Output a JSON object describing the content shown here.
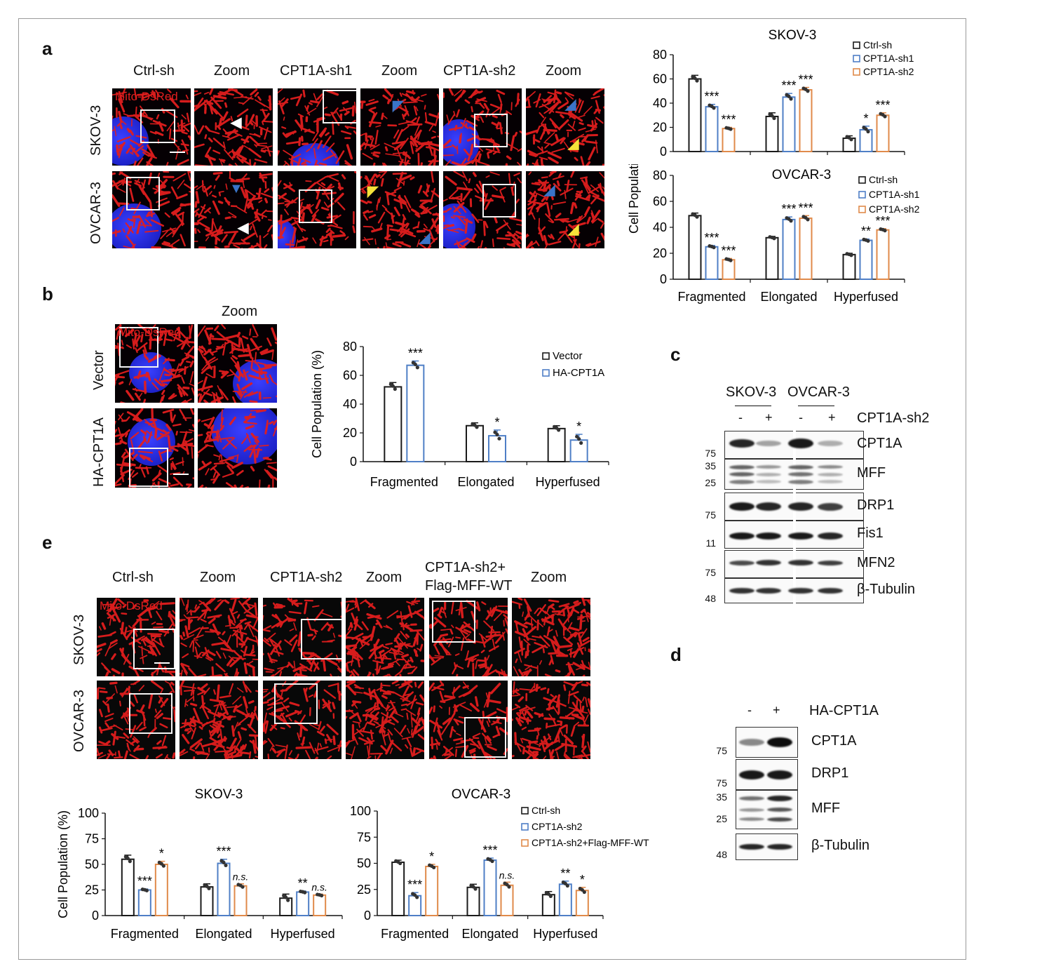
{
  "panels": {
    "a": "a",
    "b": "b",
    "c": "c",
    "d": "d",
    "e": "e"
  },
  "colors": {
    "ctrl": "#1a1a1a",
    "sh1": "#4f7fc6",
    "sh2": "#e08a4a",
    "mito": "#e21e1e",
    "nucleus": "#2a30e6"
  },
  "panel_a": {
    "columns": [
      "Ctrl-sh",
      "Zoom",
      "CPT1A-sh1",
      "Zoom",
      "CPT1A-sh2",
      "Zoom"
    ],
    "rows": [
      "SKOV-3",
      "OVCAR-3"
    ],
    "stain_label": "Mito-DsRed"
  },
  "panel_b": {
    "zoom_label": "Zoom",
    "rows": [
      "Vector",
      "HA-CPT1A"
    ],
    "stain_label": "Mito-DsRed"
  },
  "panel_c": {
    "cell_lines": [
      "SKOV-3",
      "OVCAR-3"
    ],
    "lane_signs": [
      "-",
      "+",
      "-",
      "+"
    ],
    "treatment": "CPT1A-sh2",
    "blots": [
      {
        "protein": "CPT1A",
        "markers": [
          "75"
        ]
      },
      {
        "protein": "MFF",
        "markers": [
          "35",
          "25"
        ]
      },
      {
        "protein": "DRP1",
        "markers": [
          "75"
        ]
      },
      {
        "protein": "Fis1",
        "markers": [
          "11"
        ]
      },
      {
        "protein": "MFN2",
        "markers": [
          "75"
        ]
      },
      {
        "protein": "β-Tubulin",
        "markers": [
          "48"
        ]
      }
    ]
  },
  "panel_d": {
    "lane_signs": [
      "-",
      "+"
    ],
    "treatment": "HA-CPT1A",
    "blots": [
      {
        "protein": "CPT1A",
        "markers": [
          "75"
        ]
      },
      {
        "protein": "DRP1",
        "markers": [
          "75"
        ]
      },
      {
        "protein": "MFF",
        "markers": [
          "35",
          "25"
        ]
      },
      {
        "protein": "β-Tubulin",
        "markers": [
          "48"
        ]
      }
    ]
  },
  "panel_e": {
    "columns": [
      "Ctrl-sh",
      "Zoom",
      "CPT1A-sh2",
      "Zoom",
      "CPT1A-sh2+",
      "Zoom"
    ],
    "column5_line2": "Flag-MFF-WT",
    "rows": [
      "SKOV-3",
      "OVCAR-3"
    ],
    "stain_label": "Mito-DsRed"
  },
  "chart_data": [
    {
      "id": "a_skov3",
      "type": "bar",
      "title": "SKOV-3",
      "ylabel": "Cell Population (%)",
      "ylim": [
        0,
        80
      ],
      "yticks": [
        0,
        20,
        40,
        60,
        80
      ],
      "categories": [
        "Fragmented",
        "Elongated",
        "Hyperfused"
      ],
      "legend": "top-right",
      "series": [
        {
          "name": "Ctrl-sh",
          "color": "#1a1a1a",
          "values": [
            60,
            29,
            11
          ],
          "errors": [
            3,
            3,
            2
          ],
          "sig": [
            "",
            "",
            ""
          ]
        },
        {
          "name": "CPT1A-sh1",
          "color": "#4f7fc6",
          "values": [
            37,
            45,
            18
          ],
          "errors": [
            2,
            3,
            3
          ],
          "sig": [
            "***",
            "***",
            "*"
          ]
        },
        {
          "name": "CPT1A-sh2",
          "color": "#e08a4a",
          "values": [
            19,
            51,
            30
          ],
          "errors": [
            1,
            2,
            2
          ],
          "sig": [
            "***",
            "***",
            "***"
          ]
        }
      ]
    },
    {
      "id": "a_ovcar3",
      "type": "bar",
      "title": "OVCAR-3",
      "ylabel": "Cell Population (%)",
      "ylim": [
        0,
        80
      ],
      "yticks": [
        0,
        20,
        40,
        60,
        80
      ],
      "categories": [
        "Fragmented",
        "Elongated",
        "Hyperfused"
      ],
      "legend": "top-right",
      "series": [
        {
          "name": "Ctrl-sh",
          "color": "#1a1a1a",
          "values": [
            49,
            32,
            19
          ],
          "errors": [
            2,
            1,
            1
          ],
          "sig": [
            "",
            "",
            ""
          ]
        },
        {
          "name": "CPT1A-sh1",
          "color": "#4f7fc6",
          "values": [
            25,
            46,
            30
          ],
          "errors": [
            1,
            2,
            1
          ],
          "sig": [
            "***",
            "***",
            "**"
          ]
        },
        {
          "name": "CPT1A-sh2",
          "color": "#e08a4a",
          "values": [
            15,
            47,
            38
          ],
          "errors": [
            1,
            2,
            1
          ],
          "sig": [
            "***",
            "***",
            "***"
          ]
        }
      ]
    },
    {
      "id": "b",
      "type": "bar",
      "title": "",
      "ylabel": "Cell Population (%)",
      "ylim": [
        0,
        80
      ],
      "yticks": [
        0,
        20,
        40,
        60,
        80
      ],
      "categories": [
        "Fragmented",
        "Elongated",
        "Hyperfused"
      ],
      "legend": "top-right",
      "series": [
        {
          "name": "Vector",
          "color": "#1a1a1a",
          "values": [
            52,
            25,
            23
          ],
          "errors": [
            3,
            2,
            2
          ],
          "sig": [
            "",
            "",
            ""
          ]
        },
        {
          "name": "HA-CPT1A",
          "color": "#4f7fc6",
          "values": [
            67,
            18,
            15
          ],
          "errors": [
            3,
            4,
            4
          ],
          "sig": [
            "***",
            "*",
            "*"
          ]
        }
      ]
    },
    {
      "id": "e_skov3",
      "type": "bar",
      "title": "SKOV-3",
      "ylabel": "Cell Population (%)",
      "ylim": [
        0,
        100
      ],
      "yticks": [
        0,
        25,
        50,
        75,
        100
      ],
      "categories": [
        "Fragmented",
        "Elongated",
        "Hyperfused"
      ],
      "legend": "none",
      "series": [
        {
          "name": "Ctrl-sh",
          "color": "#1a1a1a",
          "values": [
            55,
            28,
            17
          ],
          "errors": [
            4,
            3,
            4
          ],
          "sig": [
            "",
            "",
            ""
          ]
        },
        {
          "name": "CPT1A-sh2",
          "color": "#4f7fc6",
          "values": [
            25,
            51,
            23
          ],
          "errors": [
            1,
            4,
            1
          ],
          "sig": [
            "***",
            "***",
            "**"
          ]
        },
        {
          "name": "CPT1A-sh2+Flag-MFF-WT",
          "color": "#e08a4a",
          "values": [
            50,
            29,
            20
          ],
          "errors": [
            3,
            2,
            1
          ],
          "sig": [
            "*",
            "n.s.",
            "n.s."
          ]
        }
      ]
    },
    {
      "id": "e_ovcar3",
      "type": "bar",
      "title": "OVCAR-3",
      "ylabel": "",
      "ylim": [
        0,
        100
      ],
      "yticks": [
        0,
        25,
        50,
        75,
        100
      ],
      "categories": [
        "Fragmented",
        "Elongated",
        "Hyperfused"
      ],
      "legend": "top-right",
      "series": [
        {
          "name": "Ctrl-sh",
          "color": "#1a1a1a",
          "values": [
            51,
            27,
            20
          ],
          "errors": [
            2,
            3,
            3
          ],
          "sig": [
            "",
            "",
            ""
          ]
        },
        {
          "name": "CPT1A-sh2",
          "color": "#4f7fc6",
          "values": [
            19,
            53,
            30
          ],
          "errors": [
            3,
            2,
            3
          ],
          "sig": [
            "***",
            "***",
            "**"
          ]
        },
        {
          "name": "CPT1A-sh2+Flag-MFF-WT",
          "color": "#e08a4a",
          "values": [
            47,
            29,
            24
          ],
          "errors": [
            2,
            3,
            3
          ],
          "sig": [
            "*",
            "n.s.",
            "*"
          ]
        }
      ]
    }
  ]
}
